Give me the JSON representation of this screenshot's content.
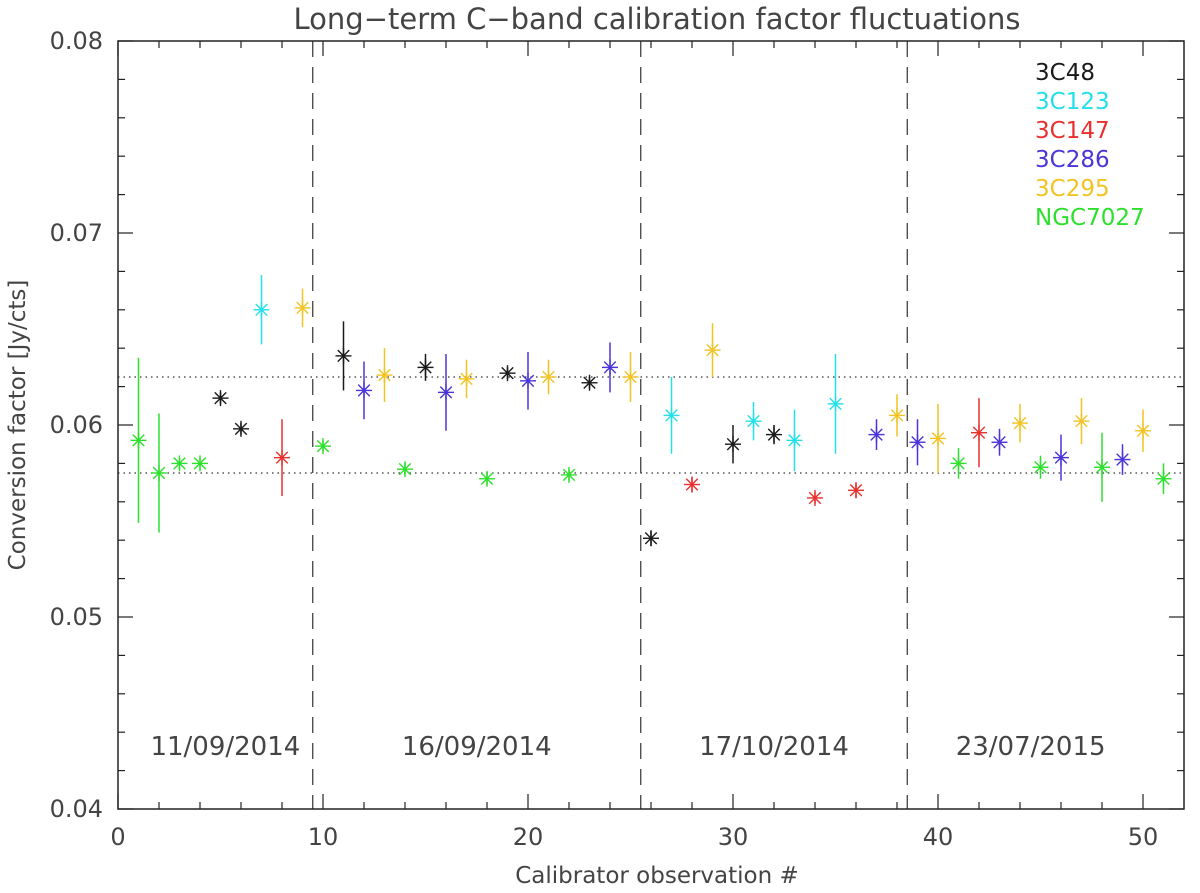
{
  "chart_data": {
    "type": "scatter",
    "title": "Long−term C−band calibration factor fluctuations",
    "xlabel": "Calibrator observation #",
    "ylabel": "Conversion factor [Jy/cts]",
    "xlim": [
      0,
      52
    ],
    "ylim": [
      0.04,
      0.08
    ],
    "x_ticks": [
      "0",
      "10",
      "20",
      "30",
      "40",
      "50"
    ],
    "y_ticks": [
      "0.04",
      "0.05",
      "0.06",
      "0.07",
      "0.08"
    ],
    "reference_lines": [
      0.0625,
      0.0575
    ],
    "period_dividers": [
      9.5,
      25.5,
      38.5
    ],
    "periods": [
      "11/09/2014",
      "16/09/2014",
      "17/10/2014",
      "23/07/2015"
    ],
    "legend_position": "top-right",
    "series": [
      {
        "name": "3C48",
        "color": "#1a1a1a",
        "points": [
          {
            "x": 5,
            "y": 0.0614,
            "err": 0.0003
          },
          {
            "x": 6,
            "y": 0.0598,
            "err": 0.0003
          },
          {
            "x": 11,
            "y": 0.0636,
            "err": 0.0018
          },
          {
            "x": 15,
            "y": 0.063,
            "err": 0.0007
          },
          {
            "x": 19,
            "y": 0.0627,
            "err": 0.0003
          },
          {
            "x": 23,
            "y": 0.0622,
            "err": 0.0003
          },
          {
            "x": 26,
            "y": 0.0541,
            "err": 0.0004
          },
          {
            "x": 30,
            "y": 0.059,
            "err": 0.001
          },
          {
            "x": 32,
            "y": 0.0595,
            "err": 0.0005
          }
        ]
      },
      {
        "name": "3C123",
        "color": "#22e0ea",
        "points": [
          {
            "x": 7,
            "y": 0.066,
            "err": 0.0018
          },
          {
            "x": 27,
            "y": 0.0605,
            "err": 0.002
          },
          {
            "x": 31,
            "y": 0.0602,
            "err": 0.001
          },
          {
            "x": 33,
            "y": 0.0592,
            "err": 0.0016
          },
          {
            "x": 35,
            "y": 0.0611,
            "err": 0.0026
          }
        ]
      },
      {
        "name": "3C147",
        "color": "#e8312e",
        "points": [
          {
            "x": 8,
            "y": 0.0583,
            "err": 0.002
          },
          {
            "x": 28,
            "y": 0.0569,
            "err": 0.0004
          },
          {
            "x": 34,
            "y": 0.0562,
            "err": 0.0003
          },
          {
            "x": 36,
            "y": 0.0566,
            "err": 0.0004
          },
          {
            "x": 42,
            "y": 0.0596,
            "err": 0.0018
          }
        ]
      },
      {
        "name": "3C286",
        "color": "#4a35d8",
        "points": [
          {
            "x": 12,
            "y": 0.0618,
            "err": 0.0015
          },
          {
            "x": 16,
            "y": 0.0617,
            "err": 0.002
          },
          {
            "x": 20,
            "y": 0.0623,
            "err": 0.0015
          },
          {
            "x": 24,
            "y": 0.063,
            "err": 0.0013
          },
          {
            "x": 37,
            "y": 0.0595,
            "err": 0.0008
          },
          {
            "x": 39,
            "y": 0.0591,
            "err": 0.0012
          },
          {
            "x": 43,
            "y": 0.0591,
            "err": 0.0007
          },
          {
            "x": 46,
            "y": 0.0583,
            "err": 0.0012
          },
          {
            "x": 49,
            "y": 0.0582,
            "err": 0.0008
          }
        ]
      },
      {
        "name": "3C295",
        "color": "#f2c322",
        "points": [
          {
            "x": 9,
            "y": 0.0661,
            "err": 0.001
          },
          {
            "x": 13,
            "y": 0.0626,
            "err": 0.0014
          },
          {
            "x": 17,
            "y": 0.0624,
            "err": 0.001
          },
          {
            "x": 21,
            "y": 0.0625,
            "err": 0.0009
          },
          {
            "x": 25,
            "y": 0.0625,
            "err": 0.0013
          },
          {
            "x": 29,
            "y": 0.0639,
            "err": 0.0014
          },
          {
            "x": 38,
            "y": 0.0605,
            "err": 0.0011
          },
          {
            "x": 40,
            "y": 0.0593,
            "err": 0.0018
          },
          {
            "x": 44,
            "y": 0.0601,
            "err": 0.001
          },
          {
            "x": 47,
            "y": 0.0602,
            "err": 0.0012
          },
          {
            "x": 50,
            "y": 0.0597,
            "err": 0.0011
          }
        ]
      },
      {
        "name": "NGC7027",
        "color": "#2de02d",
        "points": [
          {
            "x": 1,
            "y": 0.0592,
            "err": 0.0043
          },
          {
            "x": 2,
            "y": 0.0575,
            "err": 0.0031
          },
          {
            "x": 3,
            "y": 0.058,
            "err": 0.0003
          },
          {
            "x": 4,
            "y": 0.058,
            "err": 0.0003
          },
          {
            "x": 10,
            "y": 0.0589,
            "err": 0.0003
          },
          {
            "x": 14,
            "y": 0.0577,
            "err": 0.0003
          },
          {
            "x": 18,
            "y": 0.0572,
            "err": 0.0003
          },
          {
            "x": 22,
            "y": 0.0574,
            "err": 0.0003
          },
          {
            "x": 41,
            "y": 0.058,
            "err": 0.0008
          },
          {
            "x": 45,
            "y": 0.0578,
            "err": 0.0006
          },
          {
            "x": 48,
            "y": 0.0578,
            "err": 0.0018
          },
          {
            "x": 51,
            "y": 0.0572,
            "err": 0.0008
          }
        ]
      }
    ]
  }
}
